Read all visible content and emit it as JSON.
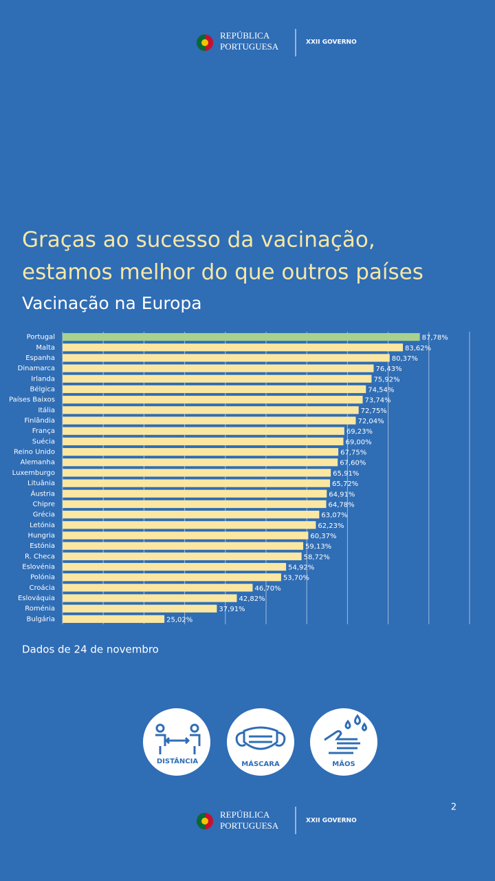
{
  "header": {
    "brand_line1": "REPÚBLICA",
    "brand_line2": "PORTUGUESA",
    "government": "XXII GOVERNO"
  },
  "chart_data": {
    "type": "bar",
    "orientation": "horizontal",
    "title": [
      "Graças ao sucesso da vacinação,",
      "estamos melhor do que outros países"
    ],
    "subtitle": "Vacinação na Europa",
    "categories": [
      "Portugal",
      "Malta",
      "Espanha",
      "Dinamarca",
      "Irlanda",
      "Bélgica",
      "Países Baixos",
      "Itália",
      "Finlândia",
      "França",
      "Suécia",
      "Reino Unido",
      "Alemanha",
      "Luxemburgo",
      "Lituânia",
      "Áustria",
      "Chipre",
      "Grécia",
      "Letónia",
      "Hungria",
      "Estónia",
      "R. Checa",
      "Eslovénia",
      "Polónia",
      "Croácia",
      "Eslováquia",
      "Roménia",
      "Bulgária"
    ],
    "values": [
      87.78,
      83.62,
      80.37,
      76.43,
      75.92,
      74.54,
      73.74,
      72.75,
      72.04,
      69.23,
      69.0,
      67.75,
      67.6,
      65.91,
      65.72,
      64.91,
      64.78,
      63.07,
      62.23,
      60.37,
      59.13,
      58.72,
      54.92,
      53.7,
      46.7,
      42.82,
      37.91,
      25.02
    ],
    "value_labels": [
      "87,78%",
      "83,62%",
      "80,37%",
      "76,43%",
      "75,92%",
      "74,54%",
      "73,74%",
      "72,75%",
      "72,04%",
      "69,23%",
      "69,00%",
      "67,75%",
      "67,60%",
      "65,91%",
      "65,72%",
      "64,91%",
      "64,78%",
      "63,07%",
      "62,23%",
      "60,37%",
      "59,13%",
      "58,72%",
      "54,92%",
      "53,70%",
      "46,70%",
      "42,82%",
      "37,91%",
      "25,02%"
    ],
    "colors": [
      "#a9d18e",
      "#fbe7a1",
      "#fbe7a1",
      "#fbe7a1",
      "#fbe7a1",
      "#fbe7a1",
      "#fbe7a1",
      "#fbe7a1",
      "#fbe7a1",
      "#fbe7a1",
      "#fbe7a1",
      "#fbe7a1",
      "#fbe7a1",
      "#fbe7a1",
      "#fbe7a1",
      "#fbe7a1",
      "#fbe7a1",
      "#fbe7a1",
      "#fbe7a1",
      "#fbe7a1",
      "#fbe7a1",
      "#fbe7a1",
      "#fbe7a1",
      "#fbe7a1",
      "#fbe7a1",
      "#fbe7a1",
      "#fbe7a1",
      "#fbe7a1"
    ],
    "xlim": [
      0,
      100
    ],
    "xticks": [
      0,
      10,
      20,
      30,
      40,
      50,
      60,
      70,
      80,
      90,
      100
    ],
    "grid": true,
    "note": "Dados de 24 de novembro"
  },
  "icons": [
    "DISTÂNCIA",
    "MÁSCARA",
    "MÃOS"
  ],
  "page_number": "2",
  "footer": {
    "brand_line1": "REPÚBLICA",
    "brand_line2": "PORTUGUESA",
    "government": "XXII GOVERNO"
  }
}
